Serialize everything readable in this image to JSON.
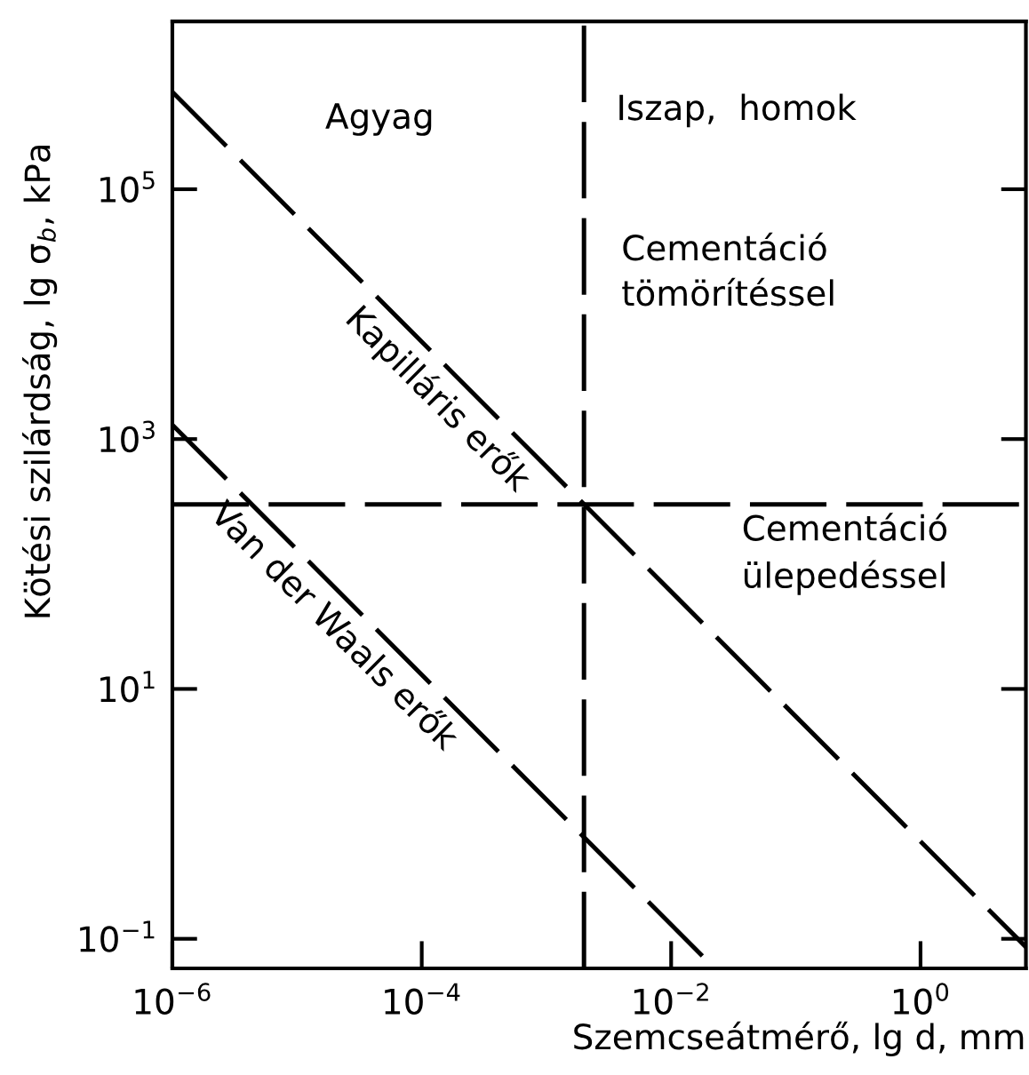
{
  "chart_data": {
    "type": "line",
    "xlabel": "Szemcseátmérő, lg d, mm",
    "ylabel": "Kötési szilárdság, lg σ$_{b}$, kPa",
    "log": "xy",
    "xlim": [
      1e-06,
      7
    ],
    "ylim": [
      0.058,
      2200000.0
    ],
    "xticks": [
      {
        "value": 1e-06,
        "label": "10$^{−6}$"
      },
      {
        "value": 0.0001,
        "label": "10$^{−4}$"
      },
      {
        "value": 0.01,
        "label": "10$^{−2}$"
      },
      {
        "value": 1,
        "label": "10$^{0}$"
      }
    ],
    "yticks": [
      {
        "value": 0.1,
        "label": "10$^{−1}$"
      },
      {
        "value": 10,
        "label": "10$^{1}$"
      },
      {
        "value": 1000,
        "label": "10$^{3}$"
      },
      {
        "value": 100000,
        "label": "10$^{5}$"
      }
    ],
    "legend": false,
    "line_style": "dashed",
    "series": [
      {
        "name": "Kapilláris erők",
        "color": "#000000",
        "x": [
          1e-06,
          7
        ],
        "values": [
          600000.0,
          0.086
        ]
      },
      {
        "name": "Van der Waals erők",
        "color": "#000000",
        "x": [
          1e-06,
          0.022
        ],
        "values": [
          1300,
          0.059
        ]
      }
    ],
    "ref_lines": [
      {
        "axis": "x",
        "value": 0.002,
        "color": "#000000",
        "line_style": "dashed"
      },
      {
        "axis": "y",
        "value": 300,
        "color": "#000000",
        "line_style": "dashed"
      }
    ],
    "annotations": [
      "Agyag",
      "Iszap,  homok",
      "Cementáció\ntömörítéssel",
      "Cementáció\nülepedéssel"
    ]
  }
}
